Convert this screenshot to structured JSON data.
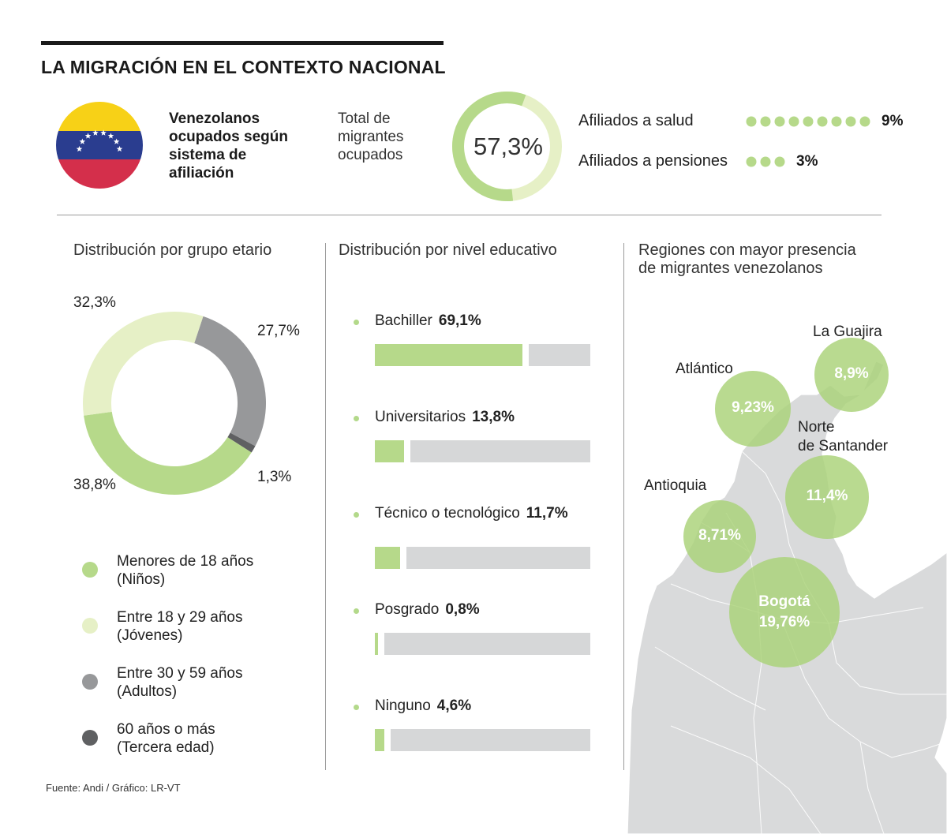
{
  "header": {
    "title": "LA MIGRACIÓN EN EL CONTEXTO NACIONAL",
    "flag_label": "Venezolanos\nocupados según\nsistema de\nafiliación",
    "total_label": "Total de\nmigrantes\nocupados",
    "total_value": "57,3%",
    "total_fraction": 0.573,
    "salud_label": "Afiliados a salud",
    "salud_value": "9%",
    "salud_dots": 9,
    "pensiones_label": "Afiliados a pensiones",
    "pensiones_value": "3%",
    "pensiones_dots": 3
  },
  "age": {
    "title": "Distribución por grupo etario",
    "legend": [
      {
        "label": "Menores de 18 años\n(Niños)",
        "color": "#b6d98a"
      },
      {
        "label": "Entre 18 y 29 años\n(Jóvenes)",
        "color": "#e6f0c6"
      },
      {
        "label": "Entre 30 y 59 años\n(Adultos)",
        "color": "#97989a"
      },
      {
        "label": "60 años o más\n(Tercera edad)",
        "color": "#5f6062"
      }
    ]
  },
  "education": {
    "title": "Distribución por nivel educativo",
    "items": [
      {
        "label": "Bachiller",
        "value": "69,1%",
        "share": 0.691
      },
      {
        "label": "Universitarios",
        "value": "13,8%",
        "share": 0.138
      },
      {
        "label": "Técnico o tecnológico",
        "value": "11,7%",
        "share": 0.117
      },
      {
        "label": "Posgrado",
        "value": "0,8%",
        "share": 0.008
      },
      {
        "label": "Ninguno",
        "value": "4,6%",
        "share": 0.046
      }
    ]
  },
  "regions": {
    "title": "Regiones con mayor presencia\nde migrantes venezolanos",
    "items": [
      {
        "name": "La Guajira",
        "value": "8,9%"
      },
      {
        "name": "Atlántico",
        "value": "9,23%"
      },
      {
        "name": "Norte\nde Santander",
        "value": "11,4%"
      },
      {
        "name": "Antioquia",
        "value": "8,71%"
      },
      {
        "name": "Bogotá",
        "value": "19,76%"
      }
    ]
  },
  "source": "Fuente: Andi / Gráfico: LR-VT",
  "chart_data": [
    {
      "type": "pie",
      "title": "Distribución por grupo etario",
      "categories": [
        "Menores de 18 años (Niños)",
        "Entre 18 y 29 años (Jóvenes)",
        "Entre 30 y 59 años (Adultos)",
        "60 años o más (Tercera edad)"
      ],
      "values": [
        38.8,
        32.3,
        27.7,
        1.3
      ],
      "labels": [
        "38,8%",
        "32,3%",
        "27,7%",
        "1,3%"
      ],
      "colors": [
        "#b6d98a",
        "#e6f0c6",
        "#97989a",
        "#5f6062"
      ]
    },
    {
      "type": "bar",
      "title": "Distribución por nivel educativo",
      "categories": [
        "Bachiller",
        "Universitarios",
        "Técnico o tecnológico",
        "Posgrado",
        "Ninguno"
      ],
      "values": [
        69.1,
        13.8,
        11.7,
        0.8,
        4.6
      ]
    },
    {
      "type": "scatter",
      "title": "Regiones con mayor presencia de migrantes venezolanos",
      "categories": [
        "La Guajira",
        "Atlántico",
        "Norte de Santander",
        "Antioquia",
        "Bogotá"
      ],
      "values": [
        8.9,
        9.23,
        11.4,
        8.71,
        19.76
      ]
    }
  ]
}
